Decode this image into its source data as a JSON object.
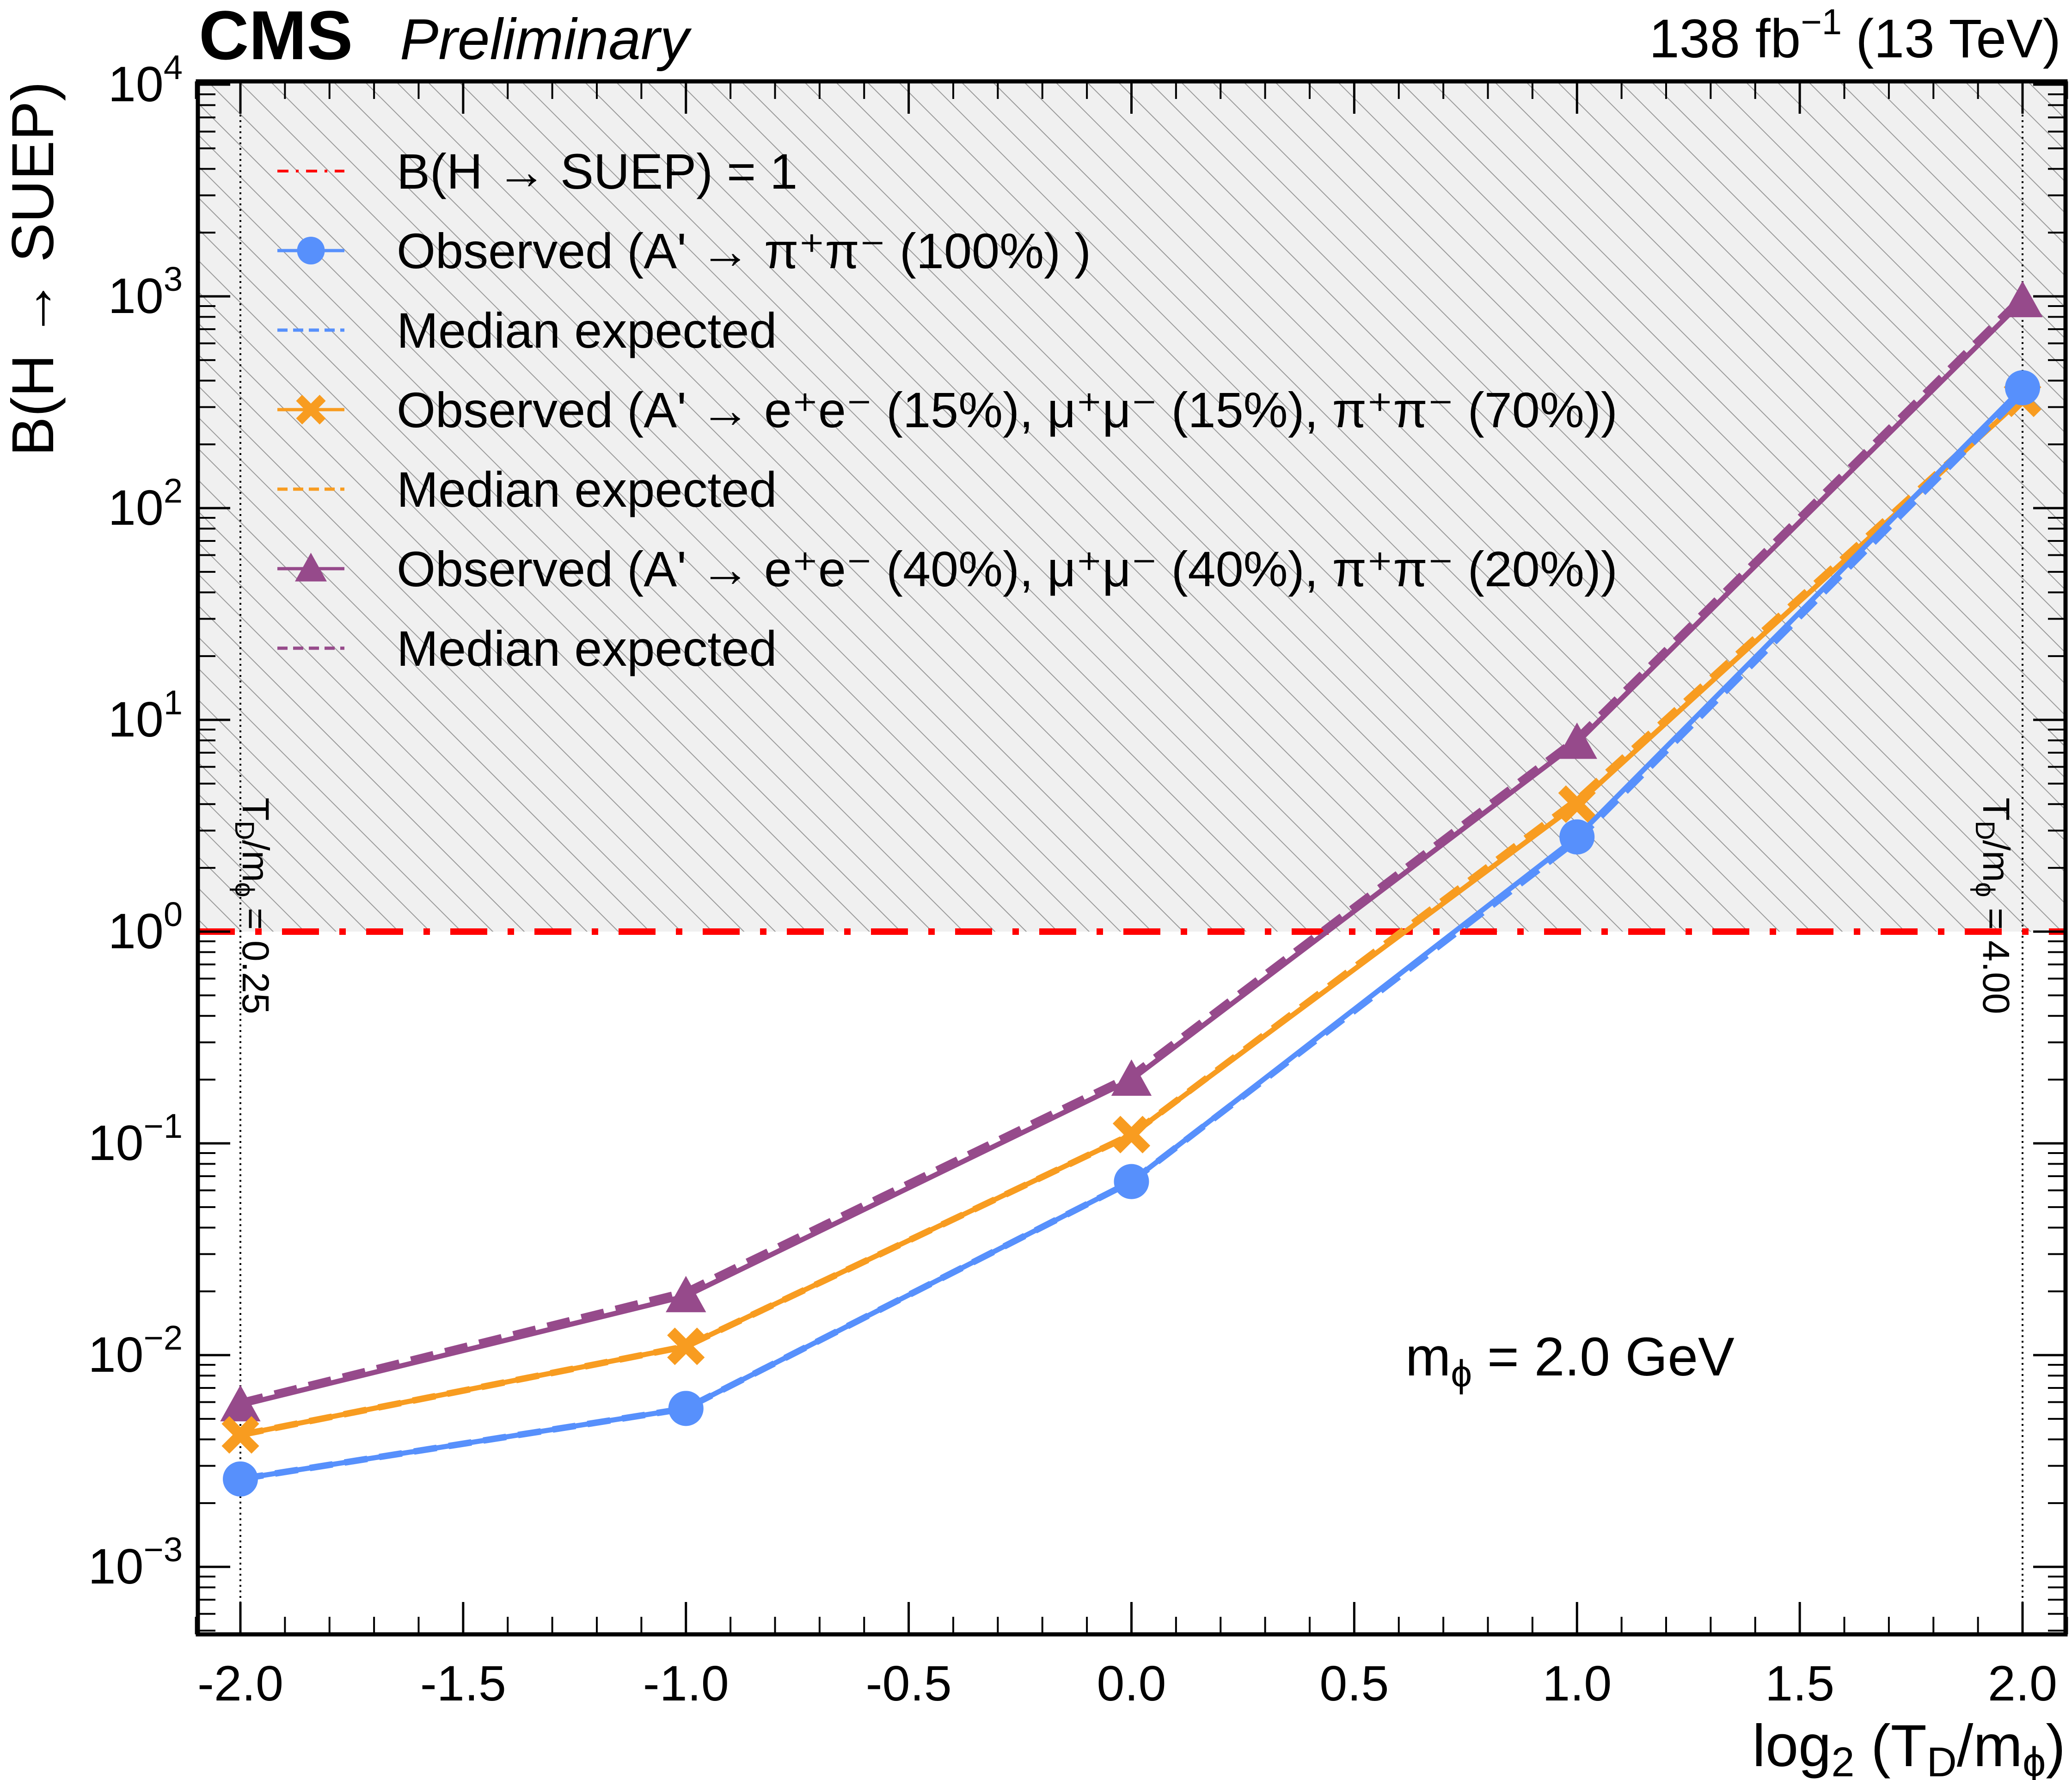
{
  "header": {
    "experiment": "CMS",
    "status": "Preliminary",
    "luminosity": "138 fb",
    "lumi_exponent": "−1",
    "energy": "(13 TeV)"
  },
  "annotation": {
    "mass_label_prefix": "m",
    "mass_label_sub": "ϕ",
    "mass_label_value": " = 2.0 GeV",
    "left_boundary": "T",
    "left_boundary_sub": "D",
    "left_boundary_rest": "/m",
    "left_boundary_sub2": "ϕ",
    "left_boundary_value": " = 0.25",
    "right_boundary_value": " = 4.00"
  },
  "chart_data": {
    "type": "line",
    "xlabel": "log",
    "xlabel_parts": {
      "func": "log",
      "base": "2",
      "open": " (T",
      "sub1": "D",
      "mid": "/m",
      "sub2": "ϕ",
      "close": ")"
    },
    "ylabel": "B(H  →  SUEP)",
    "y_scale": "log",
    "xlim": [
      -2.1,
      2.1
    ],
    "ylim": [
      0.0005,
      10000
    ],
    "x_ticks": [
      "-2.0",
      "-1.5",
      "-1.0",
      "-0.5",
      "0.0",
      "0.5",
      "1.0",
      "1.5",
      "2.0"
    ],
    "x_tick_values": [
      -2.0,
      -1.5,
      -1.0,
      -0.5,
      0.0,
      0.5,
      1.0,
      1.5,
      2.0
    ],
    "y_ticks": [
      {
        "exp": -3,
        "base": "10",
        "sup": "−3"
      },
      {
        "exp": -2,
        "base": "10",
        "sup": "−2"
      },
      {
        "exp": -1,
        "base": "10",
        "sup": "−1"
      },
      {
        "exp": 0,
        "base": "10",
        "sup": "0"
      },
      {
        "exp": 1,
        "base": "10",
        "sup": "1"
      },
      {
        "exp": 2,
        "base": "10",
        "sup": "2"
      },
      {
        "exp": 3,
        "base": "10",
        "sup": "3"
      },
      {
        "exp": 4,
        "base": "10",
        "sup": "4"
      }
    ],
    "excluded_region": {
      "y_from": 1,
      "y_to": 10000
    },
    "reference_line": {
      "y": 1,
      "color": "#ff0000",
      "label": "B(H  →  SUEP) = 1"
    },
    "vertical_lines": [
      -2.0,
      2.0
    ],
    "x": [
      -2.0,
      -1.0,
      0.0,
      1.0,
      2.0
    ],
    "series": [
      {
        "name": "Observed (A′ → π⁺π⁻ (100%) )",
        "legend_text": "Observed (A' → π⁺π⁻ (100%) )",
        "kind": "observed",
        "marker": "circle",
        "color": "#5790fc",
        "values": [
          0.0026,
          0.0056,
          0.066,
          2.8,
          370
        ]
      },
      {
        "name": "Median expected",
        "legend_text": "Median expected",
        "kind": "expected",
        "color": "#5790fc",
        "values": [
          0.0026,
          0.0056,
          0.066,
          2.7,
          350
        ]
      },
      {
        "name": "Observed (A′ → e⁺e⁻ (15%), μ⁺μ⁻ (15%), π⁺π⁻ (70%))",
        "legend_text": "Observed (A' → e⁺e⁻ (15%), μ⁺μ⁻ (15%), π⁺π⁻ (70%))",
        "kind": "observed",
        "marker": "x",
        "color": "#f89c20",
        "values": [
          0.0042,
          0.011,
          0.11,
          4.0,
          330
        ]
      },
      {
        "name": "Median expected",
        "legend_text": "Median expected",
        "kind": "expected",
        "color": "#f89c20",
        "values": [
          0.0042,
          0.011,
          0.11,
          4.2,
          340
        ]
      },
      {
        "name": "Observed (A′ → e⁺e⁻ (40%), μ⁺μ⁻ (40%), π⁺π⁻ (20%))",
        "legend_text": "Observed (A' → e⁺e⁻ (40%), μ⁺μ⁻ (40%), π⁺π⁻ (20%))",
        "kind": "observed",
        "marker": "triangle",
        "color": "#964a8b",
        "values": [
          0.0058,
          0.019,
          0.2,
          7.8,
          950
        ]
      },
      {
        "name": "Median expected",
        "legend_text": "Median expected",
        "kind": "expected",
        "color": "#964a8b",
        "values": [
          0.006,
          0.02,
          0.21,
          8.2,
          1000
        ]
      }
    ],
    "legend_position": "top-left",
    "grid": false
  },
  "colors": {
    "reference": "#ff0000",
    "hatch_bg": "#f0f0f0",
    "hatch_line": "#9a9a9a"
  }
}
